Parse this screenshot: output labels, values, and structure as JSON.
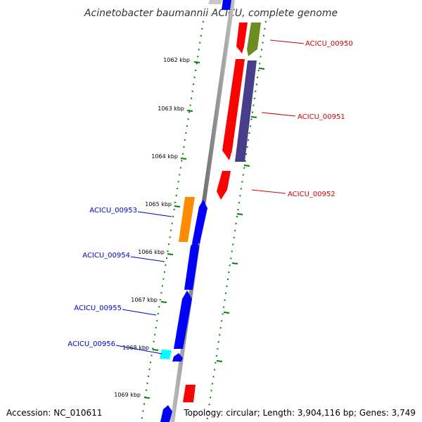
{
  "title": "Acinetobacter baumannii ACICU, complete genome",
  "footer": {
    "accession": "Accession: NC_010611",
    "summary": "Topology: circular; Length: 3,904,116 bp; Genes: 3,749"
  },
  "ticks": [
    "1062 kbp",
    "1063 kbp",
    "1064 kbp",
    "1065 kbp",
    "1066 kbp",
    "1067 kbp",
    "1068 kbp",
    "1069 kbp"
  ],
  "gene_labels_forward": [
    "ACICU_00950",
    "ACICU_00951",
    "ACICU_00952"
  ],
  "gene_labels_reverse": [
    "ACICU_00953",
    "ACICU_00954",
    "ACICU_00955",
    "ACICU_00956"
  ],
  "colors": {
    "forward_label": "#cc0000",
    "reverse_label": "#0000cc",
    "gene_red": "#ff0000",
    "gene_blue": "#0000ff",
    "gene_olive": "#6b8e23",
    "gene_purple": "#483d8b",
    "gene_orange": "#ff8c00",
    "gene_cyan": "#00ffff",
    "backbone": "#888888",
    "tick": "#006400"
  }
}
